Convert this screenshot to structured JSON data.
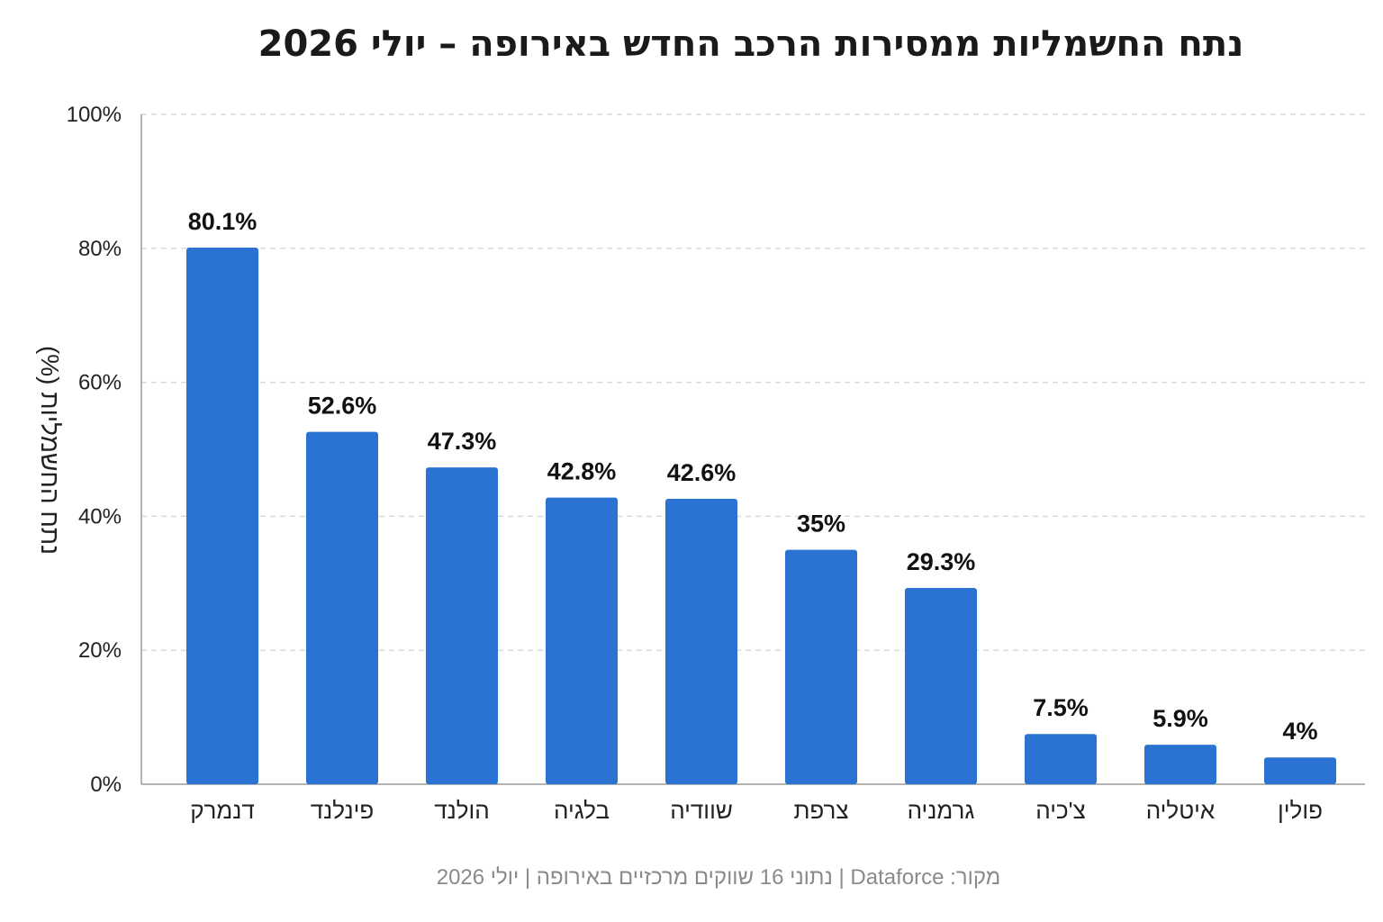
{
  "chart_data": {
    "type": "bar",
    "title": "נתח החשמליות ממסירות הרכב החדש באירופה – יולי 2026",
    "ylabel": "נתח החשמליות (%)",
    "xlabel": "",
    "categories": [
      "דנמרק",
      "פינלנד",
      "הולנד",
      "בלגיה",
      "שוודיה",
      "צרפת",
      "גרמניה",
      "צ'כיה",
      "איטליה",
      "פולין"
    ],
    "values": [
      80.1,
      52.6,
      47.3,
      42.8,
      42.6,
      35,
      29.3,
      7.5,
      5.9,
      4
    ],
    "value_labels": [
      "80.1%",
      "52.6%",
      "47.3%",
      "42.8%",
      "42.6%",
      "35%",
      "29.3%",
      "7.5%",
      "5.9%",
      "4%"
    ],
    "y_ticks": [
      0,
      20,
      40,
      60,
      80,
      100
    ],
    "y_tick_labels": [
      "0%",
      "20%",
      "40%",
      "60%",
      "80%",
      "100%"
    ],
    "ylim": [
      0,
      100
    ],
    "grid": true,
    "bar_color": "#2a73d2",
    "source": "מקור: Dataforce | נתוני 16 שווקים מרכזיים באירופה | יולי 2026"
  }
}
